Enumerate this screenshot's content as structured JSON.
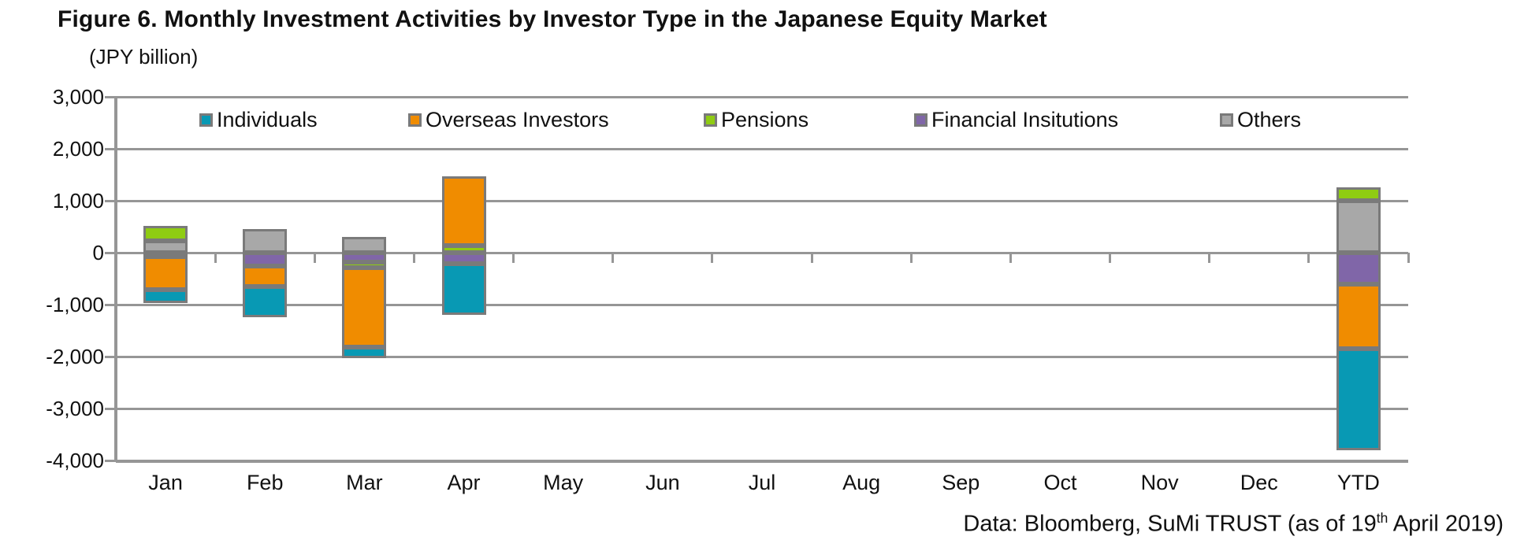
{
  "header": {
    "title": "Figure 6. Monthly Investment Activities by Investor Type in the Japanese Equity Market",
    "unit_label": "(JPY billion)"
  },
  "footer": {
    "prefix": "Data: Bloomberg, SuMi TRUST (as of 19",
    "superscript": "th",
    "suffix": " April 2019)"
  },
  "chart_data": {
    "type": "bar",
    "stacked": true,
    "title": "Figure 6. Monthly Investment Activities by Investor Type in the Japanese Equity Market",
    "ylabel": "(JPY billion)",
    "categories": [
      "Jan",
      "Feb",
      "Mar",
      "Apr",
      "May",
      "Jun",
      "Jul",
      "Aug",
      "Sep",
      "Oct",
      "Nov",
      "Dec",
      "YTD"
    ],
    "series": [
      {
        "name": "Individuals",
        "color": "#0899b4",
        "values": [
          -250,
          -600,
          -210,
          -975,
          0,
          0,
          0,
          0,
          0,
          0,
          0,
          0,
          -1950
        ]
      },
      {
        "name": "Overseas Investors",
        "color": "#f08c00",
        "values": [
          -640,
          -400,
          -1530,
          1330,
          0,
          0,
          0,
          0,
          0,
          0,
          0,
          0,
          -1250
        ]
      },
      {
        "name": "Pensions",
        "color": "#8fcc12",
        "values": [
          290,
          0,
          -110,
          140,
          0,
          0,
          0,
          0,
          0,
          0,
          0,
          0,
          260
        ]
      },
      {
        "name": "Financial Insitutions",
        "color": "#8066a8",
        "values": [
          -75,
          -250,
          -180,
          -215,
          0,
          0,
          0,
          0,
          0,
          0,
          0,
          0,
          -600
        ]
      },
      {
        "name": "Others",
        "color": "#a8a8a8",
        "values": [
          220,
          450,
          300,
          0,
          0,
          0,
          0,
          0,
          0,
          0,
          0,
          0,
          1000
        ]
      }
    ],
    "stack_order_from_axis": [
      "Others",
      "Financial Insitutions",
      "Pensions",
      "Overseas Investors",
      "Individuals"
    ],
    "ylim": [
      -4000,
      3000
    ],
    "ytick_step": 1000,
    "ytick_labels": [
      "3,000",
      "2,000",
      "1,000",
      "0",
      "-1,000",
      "-2,000",
      "-3,000",
      "-4,000"
    ],
    "grid": true,
    "legend_position": "top-inside",
    "colors": {
      "gridline": "#969696",
      "segment_border": "#7a7a7a",
      "text": "#111111"
    }
  }
}
